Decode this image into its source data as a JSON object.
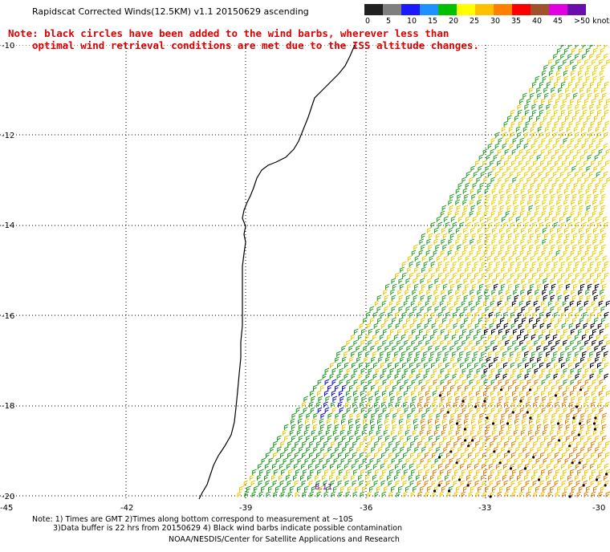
{
  "header": {
    "title": "Rapidscat Corrected Winds(12.5KM) v1.1 20150629 ascending",
    "note_line1": "Note: black circles have been added to the wind barbs, wherever less than",
    "note_line2": "optimal wind retrieval conditions are met due to the ISS altitude changes."
  },
  "legend": {
    "colors": [
      "#202020",
      "#7f7f7f",
      "#1a1aff",
      "#1e90ff",
      "#00c000",
      "#ffff00",
      "#ffc000",
      "#ff8000",
      "#ff0000",
      "#a0522d",
      "#e000e0",
      "#6a0dad"
    ],
    "labels": [
      "0",
      "5",
      "10",
      "15",
      "20",
      "25",
      "30",
      "35",
      "40",
      "45",
      ">50 knots"
    ]
  },
  "map": {
    "lat_labels": [
      "-10",
      "-12",
      "-14",
      "-16",
      "-18",
      "-20"
    ],
    "lon_labels": [
      "-45",
      "-42",
      "-39",
      "-36",
      "-33",
      "-30"
    ],
    "swath_label": "8.11"
  },
  "footer": {
    "line1": "Note: 1) Times are GMT 2)Times along bottom correspond to measurement at ~10S",
    "line2": "3)Data buffer is 22 hrs from 20150629 4) Black wind barbs indicate possible contamination",
    "line3": "NOAA/NESDIS/Center for Satellite Applications and Research"
  }
}
